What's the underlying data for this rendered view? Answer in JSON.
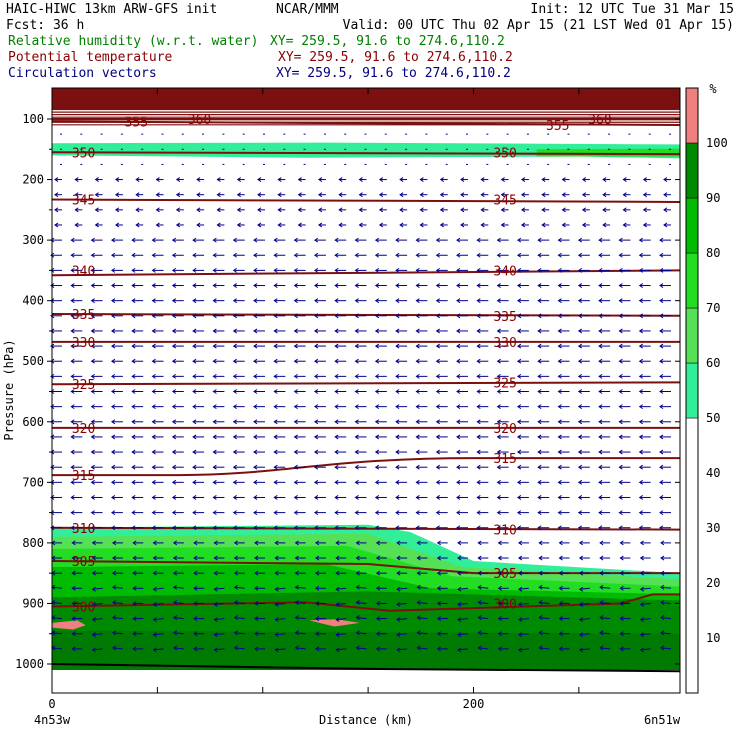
{
  "header": {
    "model": "HAIC-HIWC 13km ARW-GFS init",
    "org": "NCAR/MMM",
    "init": "Init: 12 UTC Tue 31 Mar 15",
    "fcst": "Fcst:   36 h",
    "valid": "Valid: 00 UTC Thu 02 Apr 15 (21 LST Wed 01 Apr 15)",
    "field1": "Relative humidity (w.r.t. water)",
    "field2": "Potential temperature",
    "field3": "Circulation vectors",
    "xy1": "XY= 259.5, 91.6 to 274.6,110.2",
    "xy2": "XY= 259.5, 91.6 to 274.6,110.2",
    "xy3": "XY= 259.5, 91.6 to 274.6,110.2"
  },
  "colors": {
    "rh_field": "#008000",
    "theta_field": "#8b0000",
    "vector_field": "#000080",
    "theta_contour": "#7a1010",
    "vector": "#00008b"
  },
  "chart_data": {
    "type": "cross-section",
    "xlabel": "Distance (km)",
    "ylabel": "Pressure (hPa)",
    "x_ticks": [
      "0",
      "200"
    ],
    "x_range_km": [
      0,
      298
    ],
    "x_end_labels": [
      "4n53w",
      "6n51w"
    ],
    "y_ticks": [
      100,
      200,
      300,
      400,
      500,
      600,
      700,
      800,
      900,
      1000
    ],
    "y_range_hPa": [
      50,
      1050
    ],
    "y_scale": "linear",
    "colorbar": {
      "unit": "%",
      "labels": [
        "10",
        "20",
        "30",
        "40",
        "50",
        "60",
        "70",
        "80",
        "90",
        "100"
      ],
      "bins": [
        {
          "from": 0,
          "to": 50,
          "color": "#ffffff"
        },
        {
          "from": 50,
          "to": 60,
          "color": "#33ee99"
        },
        {
          "from": 60,
          "to": 70,
          "color": "#55e055"
        },
        {
          "from": 70,
          "to": 80,
          "color": "#22dd22"
        },
        {
          "from": 80,
          "to": 90,
          "color": "#00bb00"
        },
        {
          "from": 90,
          "to": 100,
          "color": "#008a00"
        },
        {
          "from": 100,
          "to": 110,
          "color": "#f08080"
        }
      ]
    },
    "theta_contours": [
      {
        "label": "360",
        "p": [
          100,
          100
        ],
        "labels_at": [
          [
            70,
            100
          ],
          [
            260,
            100
          ]
        ]
      },
      {
        "label": "355",
        "p": [
          104,
          110
        ],
        "labels_at": [
          [
            40,
            104
          ],
          [
            240,
            110
          ]
        ]
      },
      {
        "label": "350",
        "p": [
          155,
          158
        ],
        "labels_at": [
          [
            15,
            155
          ],
          [
            215,
            155
          ]
        ]
      },
      {
        "label": "345",
        "p": [
          233,
          237
        ],
        "labels_at": [
          [
            15,
            233
          ],
          [
            215,
            233
          ]
        ]
      },
      {
        "label": "340",
        "p": [
          358,
          350
        ],
        "labels_at": [
          [
            15,
            350
          ],
          [
            215,
            350
          ]
        ]
      },
      {
        "label": "335",
        "p": [
          422,
          425
        ],
        "labels_at": [
          [
            15,
            422
          ],
          [
            215,
            425
          ]
        ]
      },
      {
        "label": "330",
        "p": [
          468,
          468
        ],
        "labels_at": [
          [
            15,
            468
          ],
          [
            215,
            468
          ]
        ]
      },
      {
        "label": "325",
        "p": [
          538,
          535
        ],
        "labels_at": [
          [
            15,
            538
          ],
          [
            215,
            535
          ]
        ]
      },
      {
        "label": "320",
        "p": [
          610,
          610
        ],
        "labels_at": [
          [
            15,
            610
          ],
          [
            215,
            610
          ]
        ]
      },
      {
        "label": "315",
        "p": [
          688,
          660
        ],
        "labels_at": [
          [
            15,
            688
          ],
          [
            215,
            660
          ]
        ]
      },
      {
        "label": "310",
        "p": [
          775,
          778
        ],
        "labels_at": [
          [
            15,
            775
          ],
          [
            215,
            778
          ]
        ]
      },
      {
        "label": "305",
        "p": [
          830,
          850
        ],
        "labels_at": [
          [
            15,
            830
          ],
          [
            215,
            850
          ]
        ]
      },
      {
        "label": "300",
        "p": [
          905,
          885
        ],
        "labels_at": [
          [
            15,
            905
          ],
          [
            215,
            900
          ]
        ]
      }
    ],
    "rh_layers": [
      {
        "name": "upper moist layer",
        "p_top": [
          138,
          148
        ],
        "p_bottom": [
          165,
          175
        ],
        "rh": "50-60"
      },
      {
        "name": "stratospheric top",
        "p_top": [
          50,
          50
        ],
        "p_bottom": [
          85,
          85
        ],
        "rh": "100+"
      },
      {
        "name": "boundary layer",
        "p_top": [
          775,
          850
        ],
        "p_bottom": [
          1000,
          1000
        ],
        "rh": "50-100"
      }
    ],
    "vectors": {
      "note": "circulation vectors, predominantly easterly (pointing left)"
    }
  }
}
